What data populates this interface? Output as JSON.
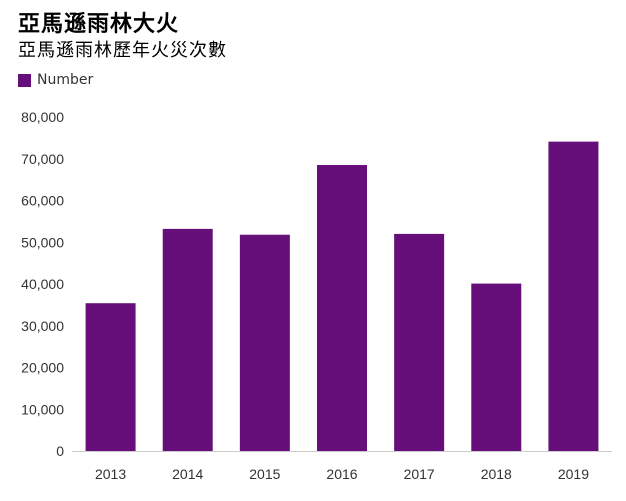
{
  "header": {
    "title": "亞馬遜雨林大火",
    "subtitle": "亞馬遜雨林歷年火災次數"
  },
  "colors": {
    "bar": "#660e7a",
    "axis": "#cccccc",
    "text": "#333333"
  },
  "chart_data": {
    "type": "bar",
    "categories": [
      "2013",
      "2014",
      "2015",
      "2016",
      "2017",
      "2018",
      "2019"
    ],
    "series": [
      {
        "name": "Number",
        "values": [
          35400,
          53200,
          51800,
          68500,
          52000,
          40100,
          74100
        ]
      }
    ],
    "y_ticks": [
      0,
      10000,
      20000,
      30000,
      40000,
      50000,
      60000,
      70000,
      80000
    ],
    "y_tick_labels": [
      "0",
      "10,000",
      "20,000",
      "30,000",
      "40,000",
      "50,000",
      "60,000",
      "70,000",
      "80,000"
    ],
    "ylim": [
      0,
      80000
    ],
    "grid": false,
    "legend": "top-left"
  }
}
